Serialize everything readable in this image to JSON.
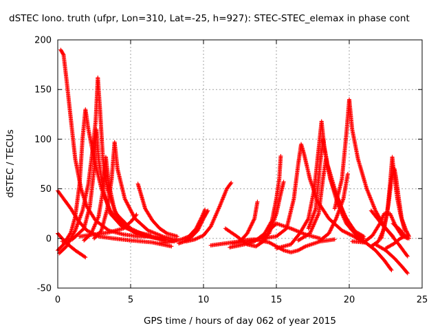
{
  "chart_data": {
    "type": "scatter",
    "title": "dSTEC Iono. truth (ufpr, Lon=310, Lat=-25, h=927): STEC-STEC_elemax in phase cont",
    "xlabel": "GPS time / hours of day 062 of year 2015",
    "ylabel": "dSTEC  / TECUs",
    "xlim": [
      0,
      25
    ],
    "ylim": [
      -50,
      200
    ],
    "xticks": [
      "0",
      "5",
      "10",
      "15",
      "20",
      "25"
    ],
    "yticks": [
      "-50",
      "0",
      "50",
      "100",
      "150",
      "200"
    ],
    "grid": true,
    "legend": "none",
    "marker": "plus",
    "color": "#ff0000",
    "series": [
      {
        "points": [
          [
            0.1,
            -15
          ],
          [
            0.6,
            -8
          ],
          [
            1.2,
            8
          ],
          [
            1.7,
            28
          ],
          [
            2.1,
            55
          ],
          [
            2.4,
            90
          ],
          [
            2.6,
            118
          ],
          [
            2.75,
            162
          ],
          [
            2.9,
            130
          ],
          [
            3.1,
            80
          ],
          [
            3.4,
            50
          ],
          [
            4.0,
            25
          ],
          [
            5.0,
            10
          ],
          [
            6.0,
            3
          ],
          [
            7.0,
            0
          ],
          [
            8.0,
            -3
          ]
        ]
      },
      {
        "points": [
          [
            0.2,
            190
          ],
          [
            0.4,
            185
          ],
          [
            0.6,
            160
          ],
          [
            0.9,
            120
          ],
          [
            1.2,
            80
          ],
          [
            1.6,
            50
          ],
          [
            2.0,
            32
          ],
          [
            2.6,
            18
          ],
          [
            3.5,
            8
          ],
          [
            4.5,
            4
          ],
          [
            5.5,
            2
          ],
          [
            6.3,
            2
          ]
        ]
      },
      {
        "points": [
          [
            0.0,
            48
          ],
          [
            0.4,
            40
          ],
          [
            0.9,
            30
          ],
          [
            1.4,
            18
          ],
          [
            2.0,
            8
          ],
          [
            2.8,
            2
          ],
          [
            3.8,
            0
          ],
          [
            5.0,
            -2
          ],
          [
            6.5,
            -4
          ],
          [
            7.8,
            -8
          ]
        ]
      },
      {
        "points": [
          [
            0.0,
            5
          ],
          [
            0.3,
            0
          ],
          [
            0.7,
            -6
          ],
          [
            1.2,
            -12
          ],
          [
            1.9,
            -19
          ]
        ]
      },
      {
        "points": [
          [
            0.0,
            -12
          ],
          [
            0.4,
            -6
          ],
          [
            0.9,
            6
          ],
          [
            1.2,
            22
          ],
          [
            1.5,
            55
          ],
          [
            1.7,
            100
          ],
          [
            1.9,
            130
          ],
          [
            2.1,
            110
          ],
          [
            2.5,
            80
          ],
          [
            3.0,
            50
          ],
          [
            3.6,
            28
          ],
          [
            4.3,
            15
          ],
          [
            5.2,
            7
          ],
          [
            6.3,
            2
          ],
          [
            7.3,
            -2
          ]
        ]
      },
      {
        "points": [
          [
            0.3,
            -3
          ],
          [
            1.0,
            -1
          ],
          [
            1.8,
            10
          ],
          [
            2.2,
            32
          ],
          [
            2.5,
            70
          ],
          [
            2.65,
            110
          ],
          [
            2.8,
            80
          ],
          [
            3.1,
            50
          ],
          [
            3.6,
            25
          ],
          [
            4.4,
            12
          ],
          [
            5.5,
            6
          ],
          [
            6.4,
            3
          ]
        ]
      },
      {
        "points": [
          [
            1.8,
            -2
          ],
          [
            2.3,
            5
          ],
          [
            2.8,
            22
          ],
          [
            3.1,
            48
          ],
          [
            3.3,
            82
          ],
          [
            3.5,
            55
          ],
          [
            3.9,
            28
          ],
          [
            4.6,
            12
          ],
          [
            5.5,
            4
          ],
          [
            6.5,
            1
          ],
          [
            7.4,
            -1
          ]
        ]
      },
      {
        "points": [
          [
            2.5,
            0
          ],
          [
            3.0,
            8
          ],
          [
            3.4,
            30
          ],
          [
            3.7,
            60
          ],
          [
            3.9,
            97
          ],
          [
            4.1,
            70
          ],
          [
            4.6,
            40
          ],
          [
            5.3,
            20
          ],
          [
            6.2,
            8
          ],
          [
            7.2,
            2
          ],
          [
            8.2,
            -2
          ]
        ]
      },
      {
        "points": [
          [
            1.5,
            2
          ],
          [
            2.5,
            4
          ],
          [
            3.5,
            6
          ],
          [
            4.5,
            10
          ],
          [
            5.1,
            18
          ],
          [
            5.4,
            24
          ]
        ]
      },
      {
        "points": [
          [
            5.5,
            55
          ],
          [
            5.7,
            45
          ],
          [
            6.0,
            30
          ],
          [
            6.5,
            18
          ],
          [
            7.0,
            10
          ],
          [
            7.5,
            5
          ],
          [
            8.2,
            2
          ]
        ]
      },
      {
        "points": [
          [
            7.0,
            -5
          ],
          [
            7.8,
            -3
          ],
          [
            8.5,
            -1
          ],
          [
            9.0,
            2
          ],
          [
            9.5,
            10
          ],
          [
            9.9,
            22
          ],
          [
            10.1,
            29
          ]
        ]
      },
      {
        "points": [
          [
            8.3,
            -5
          ],
          [
            8.7,
            -3
          ],
          [
            9.2,
            2
          ],
          [
            9.6,
            8
          ],
          [
            10.0,
            20
          ],
          [
            10.3,
            28
          ]
        ]
      },
      {
        "points": [
          [
            8.8,
            -3
          ],
          [
            9.4,
            -1
          ],
          [
            10.0,
            3
          ],
          [
            10.5,
            12
          ],
          [
            11.1,
            32
          ],
          [
            11.6,
            50
          ],
          [
            11.9,
            56
          ]
        ]
      },
      {
        "points": [
          [
            10.5,
            -7
          ],
          [
            11.5,
            -5
          ],
          [
            12.5,
            -3
          ],
          [
            13.0,
            5
          ],
          [
            13.5,
            20
          ],
          [
            13.7,
            37
          ]
        ]
      },
      {
        "points": [
          [
            11.5,
            10
          ],
          [
            12.3,
            2
          ],
          [
            13.0,
            -6
          ],
          [
            13.6,
            -8
          ],
          [
            14.2,
            -2
          ],
          [
            14.5,
            8
          ],
          [
            15.0,
            15
          ],
          [
            16.0,
            10
          ],
          [
            17.0,
            4
          ],
          [
            18.0,
            0
          ]
        ]
      },
      {
        "points": [
          [
            11.8,
            -9
          ],
          [
            12.8,
            -6
          ],
          [
            13.5,
            -3
          ],
          [
            14.2,
            5
          ],
          [
            14.7,
            18
          ],
          [
            15.0,
            40
          ],
          [
            15.2,
            60
          ],
          [
            15.3,
            83
          ]
        ]
      },
      {
        "points": [
          [
            12.0,
            -5
          ],
          [
            13.0,
            -3
          ],
          [
            14.0,
            0
          ],
          [
            14.5,
            5
          ],
          [
            15.0,
            25
          ],
          [
            15.3,
            45
          ],
          [
            15.5,
            57
          ]
        ]
      },
      {
        "points": [
          [
            12.5,
            -2
          ],
          [
            13.5,
            -1
          ],
          [
            14.5,
            -4
          ],
          [
            15.5,
            -12
          ],
          [
            16.0,
            -14
          ],
          [
            16.5,
            -12
          ],
          [
            17.0,
            -8
          ],
          [
            18.0,
            -3
          ],
          [
            19.0,
            -1
          ]
        ]
      },
      {
        "points": [
          [
            14.0,
            0
          ],
          [
            15.0,
            2
          ],
          [
            15.7,
            10
          ],
          [
            16.2,
            40
          ],
          [
            16.5,
            75
          ],
          [
            16.7,
            95
          ],
          [
            16.9,
            85
          ],
          [
            17.3,
            60
          ],
          [
            17.8,
            38
          ],
          [
            18.6,
            20
          ],
          [
            19.5,
            8
          ],
          [
            20.6,
            0
          ]
        ]
      },
      {
        "points": [
          [
            15.0,
            -10
          ],
          [
            16.0,
            -6
          ],
          [
            16.6,
            5
          ],
          [
            17.2,
            20
          ],
          [
            17.6,
            50
          ],
          [
            17.9,
            90
          ],
          [
            18.1,
            118
          ],
          [
            18.3,
            90
          ],
          [
            18.7,
            60
          ],
          [
            19.2,
            35
          ],
          [
            19.8,
            15
          ],
          [
            20.5,
            3
          ],
          [
            21.0,
            -2
          ]
        ]
      },
      {
        "points": [
          [
            16.5,
            -2
          ],
          [
            17.3,
            5
          ],
          [
            17.9,
            25
          ],
          [
            18.2,
            60
          ],
          [
            18.4,
            80
          ],
          [
            18.7,
            60
          ],
          [
            19.2,
            40
          ],
          [
            19.8,
            20
          ],
          [
            20.5,
            5
          ],
          [
            21.0,
            0
          ]
        ]
      },
      {
        "points": [
          [
            17.2,
            10
          ],
          [
            17.7,
            30
          ],
          [
            18.0,
            75
          ],
          [
            18.2,
            100
          ],
          [
            18.5,
            75
          ],
          [
            19.0,
            50
          ],
          [
            19.6,
            25
          ],
          [
            20.3,
            8
          ],
          [
            21.0,
            2
          ]
        ]
      },
      {
        "points": [
          [
            18.0,
            -2
          ],
          [
            18.6,
            5
          ],
          [
            19.1,
            20
          ],
          [
            19.6,
            40
          ],
          [
            19.9,
            65
          ]
        ]
      },
      {
        "points": [
          [
            19.0,
            30
          ],
          [
            19.5,
            60
          ],
          [
            19.8,
            105
          ],
          [
            20.0,
            140
          ],
          [
            20.2,
            110
          ],
          [
            20.6,
            80
          ],
          [
            21.2,
            50
          ],
          [
            21.8,
            28
          ],
          [
            22.4,
            12
          ],
          [
            23.0,
            2
          ]
        ]
      },
      {
        "points": [
          [
            20.2,
            -3
          ],
          [
            21.0,
            -4
          ],
          [
            21.6,
            3
          ],
          [
            22.1,
            15
          ],
          [
            22.4,
            25
          ],
          [
            22.8,
            25
          ],
          [
            23.2,
            12
          ],
          [
            23.6,
            3
          ],
          [
            24.0,
            0
          ]
        ]
      },
      {
        "points": [
          [
            20.5,
            0
          ],
          [
            21.2,
            -5
          ],
          [
            21.8,
            -12
          ],
          [
            22.4,
            -22
          ],
          [
            22.9,
            -32
          ]
        ]
      },
      {
        "points": [
          [
            21.5,
            -8
          ],
          [
            22.0,
            -3
          ],
          [
            22.4,
            10
          ],
          [
            22.7,
            35
          ],
          [
            22.9,
            60
          ],
          [
            23.1,
            70
          ],
          [
            23.2,
            62
          ],
          [
            23.4,
            40
          ],
          [
            23.6,
            20
          ],
          [
            23.9,
            8
          ],
          [
            24.1,
            2
          ]
        ]
      },
      {
        "points": [
          [
            22.2,
            0
          ],
          [
            22.6,
            25
          ],
          [
            22.8,
            55
          ],
          [
            22.95,
            82
          ],
          [
            23.1,
            62
          ],
          [
            23.3,
            40
          ],
          [
            23.5,
            25
          ],
          [
            23.8,
            8
          ]
        ]
      },
      {
        "points": [
          [
            21.5,
            28
          ],
          [
            22.2,
            15
          ],
          [
            22.8,
            5
          ],
          [
            23.4,
            -6
          ],
          [
            24.0,
            -18
          ]
        ]
      },
      {
        "points": [
          [
            21.8,
            -6
          ],
          [
            22.5,
            -12
          ],
          [
            23.1,
            -20
          ],
          [
            23.6,
            -28
          ],
          [
            24.0,
            -35
          ]
        ]
      },
      {
        "points": [
          [
            23.0,
            15
          ],
          [
            23.4,
            10
          ],
          [
            23.8,
            3
          ],
          [
            24.1,
            0
          ]
        ]
      },
      {
        "points": [
          [
            22.5,
            -10
          ],
          [
            23.1,
            -5
          ],
          [
            23.5,
            0
          ],
          [
            23.8,
            2
          ]
        ]
      }
    ]
  }
}
